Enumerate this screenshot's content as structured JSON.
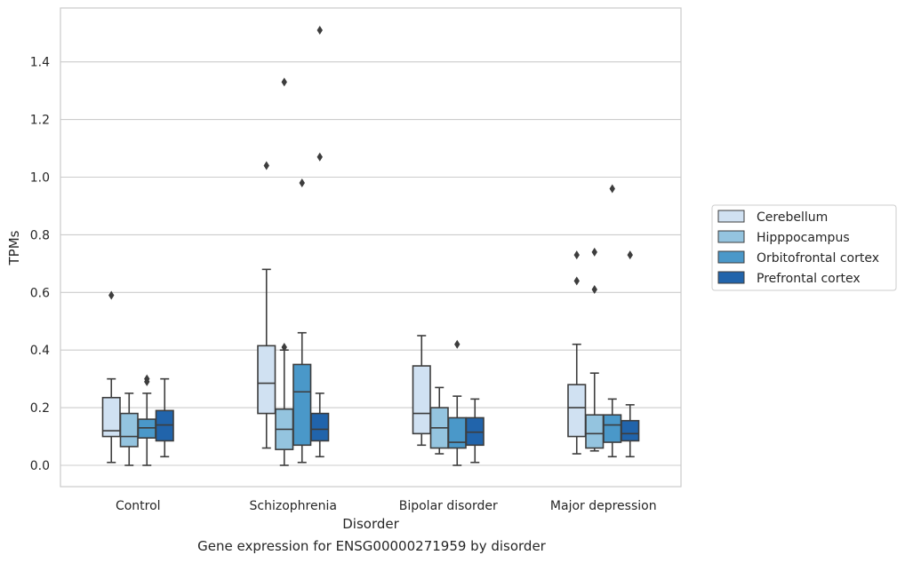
{
  "caption": "Gene expression for ENSG00000271959 by disorder",
  "chart_data": {
    "type": "box",
    "title": "",
    "xlabel": "Disorder",
    "ylabel": "TPMs",
    "ylim": [
      -0.07,
      1.6
    ],
    "yticks": [
      0.0,
      0.2,
      0.4,
      0.6,
      0.8,
      1.0,
      1.2,
      1.4
    ],
    "ytick_labels": [
      "0.0",
      "0.2",
      "0.4",
      "0.6",
      "0.8",
      "1.0",
      "1.2",
      "1.4"
    ],
    "grid": "horizontal",
    "legend_position": "right",
    "categories": [
      "Control",
      "Schizophrenia",
      "Bipolar disorder",
      "Major depression"
    ],
    "series": [
      {
        "name": "Cerebellum",
        "color": "#d0e1f2",
        "boxes": [
          {
            "whisker_low": 0.01,
            "q1": 0.1,
            "median": 0.12,
            "q3": 0.235,
            "whisker_high": 0.3,
            "outliers": [
              0.59
            ]
          },
          {
            "whisker_low": 0.06,
            "q1": 0.18,
            "median": 0.285,
            "q3": 0.415,
            "whisker_high": 0.68,
            "outliers": [
              1.04
            ]
          },
          {
            "whisker_low": 0.07,
            "q1": 0.11,
            "median": 0.18,
            "q3": 0.345,
            "whisker_high": 0.45,
            "outliers": []
          },
          {
            "whisker_low": 0.04,
            "q1": 0.1,
            "median": 0.2,
            "q3": 0.28,
            "whisker_high": 0.42,
            "outliers": [
              0.64,
              0.73
            ]
          }
        ]
      },
      {
        "name": "Hipppocampus",
        "color": "#94c4df",
        "boxes": [
          {
            "whisker_low": 0.0,
            "q1": 0.065,
            "median": 0.1,
            "q3": 0.18,
            "whisker_high": 0.25,
            "outliers": []
          },
          {
            "whisker_low": 0.0,
            "q1": 0.055,
            "median": 0.125,
            "q3": 0.195,
            "whisker_high": 0.4,
            "outliers": [
              0.41,
              1.33
            ]
          },
          {
            "whisker_low": 0.04,
            "q1": 0.06,
            "median": 0.13,
            "q3": 0.2,
            "whisker_high": 0.27,
            "outliers": []
          },
          {
            "whisker_low": 0.05,
            "q1": 0.06,
            "median": 0.11,
            "q3": 0.175,
            "whisker_high": 0.32,
            "outliers": [
              0.61,
              0.74
            ]
          }
        ]
      },
      {
        "name": "Orbitofrontal cortex",
        "color": "#4a98c9",
        "boxes": [
          {
            "whisker_low": 0.0,
            "q1": 0.095,
            "median": 0.13,
            "q3": 0.16,
            "whisker_high": 0.25,
            "outliers": [
              0.29,
              0.3
            ]
          },
          {
            "whisker_low": 0.01,
            "q1": 0.07,
            "median": 0.255,
            "q3": 0.35,
            "whisker_high": 0.46,
            "outliers": [
              0.98
            ]
          },
          {
            "whisker_low": 0.0,
            "q1": 0.06,
            "median": 0.08,
            "q3": 0.165,
            "whisker_high": 0.24,
            "outliers": [
              0.42
            ]
          },
          {
            "whisker_low": 0.03,
            "q1": 0.08,
            "median": 0.14,
            "q3": 0.175,
            "whisker_high": 0.23,
            "outliers": [
              0.96
            ]
          }
        ]
      },
      {
        "name": "Prefrontal cortex",
        "color": "#2164ab",
        "boxes": [
          {
            "whisker_low": 0.03,
            "q1": 0.085,
            "median": 0.14,
            "q3": 0.19,
            "whisker_high": 0.3,
            "outliers": []
          },
          {
            "whisker_low": 0.03,
            "q1": 0.085,
            "median": 0.125,
            "q3": 0.18,
            "whisker_high": 0.25,
            "outliers": [
              1.07,
              1.51
            ]
          },
          {
            "whisker_low": 0.01,
            "q1": 0.07,
            "median": 0.115,
            "q3": 0.165,
            "whisker_high": 0.23,
            "outliers": []
          },
          {
            "whisker_low": 0.03,
            "q1": 0.085,
            "median": 0.11,
            "q3": 0.155,
            "whisker_high": 0.21,
            "outliers": [
              0.73
            ]
          }
        ]
      }
    ]
  }
}
